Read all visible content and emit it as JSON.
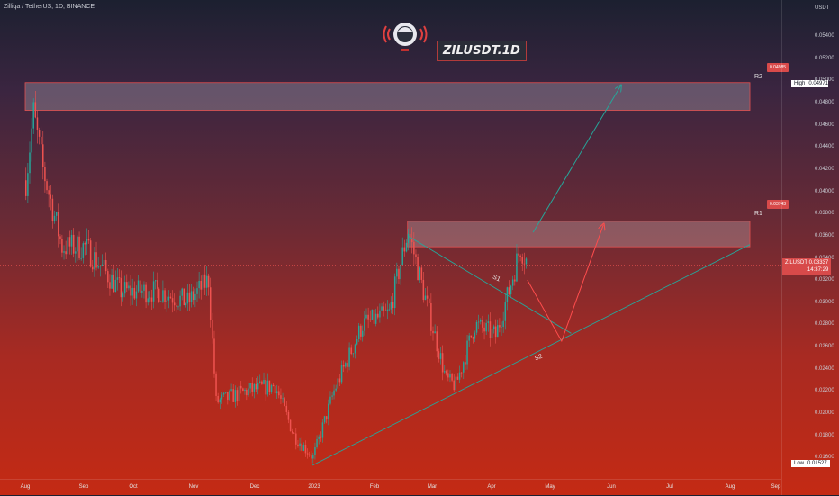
{
  "header": {
    "symbol_title": "Zilliqa / TetherUS, 1D, BINANCE",
    "badge": "ZILUSDT.1D"
  },
  "price_axis": {
    "unit": "USDT",
    "ticks": [
      "0.05400",
      "0.05200",
      "0.05000",
      "0.04800",
      "0.04600",
      "0.04400",
      "0.04200",
      "0.04000",
      "0.03800",
      "0.03600",
      "0.03400",
      "0.03200",
      "0.03000",
      "0.02800",
      "0.02600",
      "0.02400",
      "0.02200",
      "0.02000",
      "0.01800",
      "0.01600"
    ],
    "high": {
      "label": "High",
      "value": "0.04971"
    },
    "low": {
      "label": "Low",
      "value": "0.01527"
    },
    "current": {
      "symbol": "ZILUSDT",
      "price": "0.03337",
      "countdown": "14:37:29"
    }
  },
  "time_axis": {
    "ticks": [
      "Aug",
      "Sep",
      "Oct",
      "Nov",
      "Dec",
      "2023",
      "Feb",
      "Mar",
      "Apr",
      "May",
      "Jun",
      "Jul",
      "Aug",
      "Sep"
    ]
  },
  "annotations": {
    "r2_label": "R2",
    "r1_label": "R1",
    "s1_label": "S1",
    "s2_label": "S2",
    "r2_alert": "0.04985",
    "r1_alert": "0.03743"
  },
  "colors": {
    "up": "#26a69a",
    "down": "#ef5350",
    "zone_fill": "rgba(255,255,255,0.22)",
    "zone_border": "#e05050",
    "trendline": "#26a69a",
    "projection": "#ff4d4d"
  },
  "chart_data": {
    "type": "candlestick",
    "title": "Zilliqa / TetherUS, 1D, BINANCE",
    "x_range": [
      "Jul 2022",
      "Sep 2023"
    ],
    "ylim": [
      0.0152,
      0.0555
    ],
    "series": [
      {
        "name": "ZILUSDT",
        "approx_close_path": [
          {
            "date": "2022-08-01",
            "close": 0.041
          },
          {
            "date": "2022-08-05",
            "close": 0.047
          },
          {
            "date": "2022-08-10",
            "close": 0.042
          },
          {
            "date": "2022-08-20",
            "close": 0.035
          },
          {
            "date": "2022-09-01",
            "close": 0.035
          },
          {
            "date": "2022-09-20",
            "close": 0.031
          },
          {
            "date": "2022-10-10",
            "close": 0.031
          },
          {
            "date": "2022-10-25",
            "close": 0.03
          },
          {
            "date": "2022-11-05",
            "close": 0.032
          },
          {
            "date": "2022-11-09",
            "close": 0.021
          },
          {
            "date": "2022-11-25",
            "close": 0.022
          },
          {
            "date": "2022-12-10",
            "close": 0.0225
          },
          {
            "date": "2022-12-20",
            "close": 0.018
          },
          {
            "date": "2022-12-30",
            "close": 0.016
          },
          {
            "date": "2023-01-10",
            "close": 0.022
          },
          {
            "date": "2023-01-25",
            "close": 0.028
          },
          {
            "date": "2023-02-08",
            "close": 0.029
          },
          {
            "date": "2023-02-18",
            "close": 0.0365
          },
          {
            "date": "2023-02-26",
            "close": 0.031
          },
          {
            "date": "2023-03-10",
            "close": 0.023
          },
          {
            "date": "2023-03-15",
            "close": 0.0225
          },
          {
            "date": "2023-03-25",
            "close": 0.028
          },
          {
            "date": "2023-04-05",
            "close": 0.027
          },
          {
            "date": "2023-04-12",
            "close": 0.031
          },
          {
            "date": "2023-04-18",
            "close": 0.035
          },
          {
            "date": "2023-04-22",
            "close": 0.0334
          }
        ]
      }
    ],
    "resistance_zones": [
      {
        "name": "R2",
        "from_date": "2022-08-01",
        "to_date": "2023-08-17",
        "low": 0.0473,
        "high": 0.0498
      },
      {
        "name": "R1",
        "from_date": "2023-02-18",
        "to_date": "2023-08-17",
        "low": 0.035,
        "high": 0.0373
      }
    ],
    "trendlines": [
      {
        "name": "S2",
        "from": {
          "date": "2022-12-30",
          "price": 0.0153
        },
        "to": {
          "date": "2023-08-17",
          "price": 0.0352
        }
      },
      {
        "name": "S1",
        "from": {
          "date": "2023-02-18",
          "price": 0.036
        },
        "to": {
          "date": "2023-05-15",
          "price": 0.0272
        }
      }
    ],
    "projections": [
      {
        "name": "bull_arrow",
        "points": [
          {
            "date": "2023-04-25",
            "price": 0.0363
          },
          {
            "date": "2023-06-10",
            "price": 0.0495
          }
        ]
      },
      {
        "name": "bear_then_bull",
        "points": [
          {
            "date": "2023-04-22",
            "price": 0.032
          },
          {
            "date": "2023-05-10",
            "price": 0.0265
          },
          {
            "date": "2023-06-01",
            "price": 0.037
          }
        ]
      }
    ],
    "grid": false
  }
}
